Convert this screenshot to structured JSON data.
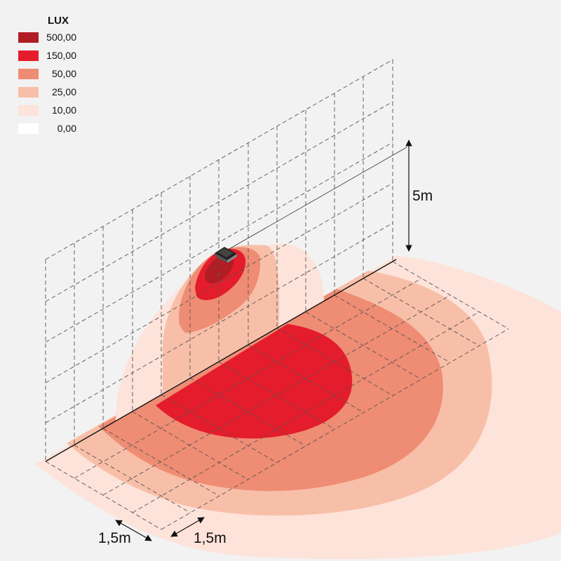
{
  "legend": {
    "title": "LUX",
    "items": [
      {
        "label": "500,00",
        "color": "#b01e24"
      },
      {
        "label": "150,00",
        "color": "#e41c2c"
      },
      {
        "label": "50,00",
        "color": "#ef8c74"
      },
      {
        "label": "25,00",
        "color": "#f8bfa8"
      },
      {
        "label": "10,00",
        "color": "#fde3da"
      },
      {
        "label": "0,00",
        "color": "#ffffff"
      }
    ]
  },
  "dimensions": {
    "height": "5m",
    "grid_width": "1,5m",
    "grid_depth": "1,5m"
  }
}
